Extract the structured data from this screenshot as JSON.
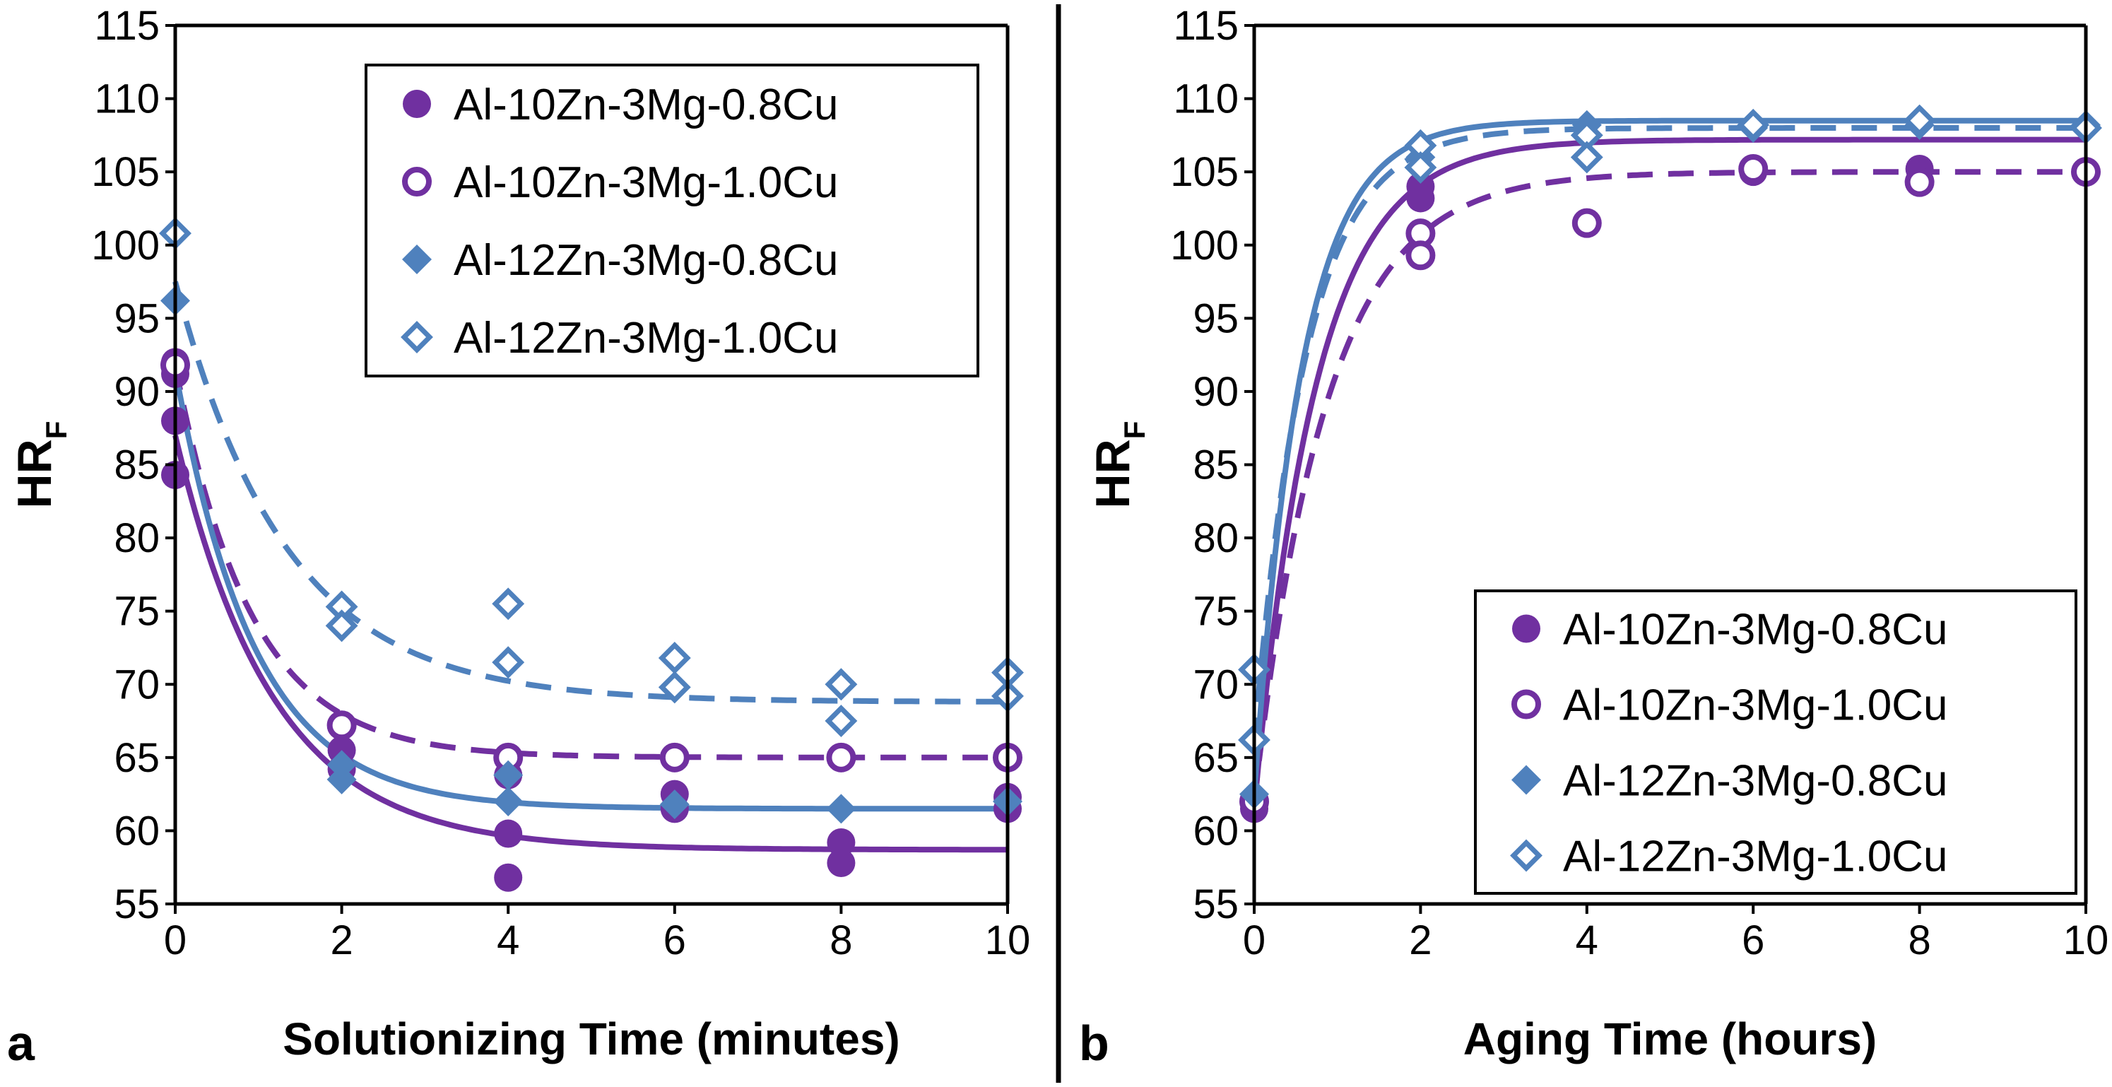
{
  "colors": {
    "purple": "#7030A0",
    "blue": "#4F81BD",
    "axis": "#000000"
  },
  "chart_data": [
    {
      "id": "a",
      "type": "scatter",
      "panel_label": "a",
      "xlabel": "Solutionizing Time (minutes)",
      "ylabel": "HR",
      "ylabel_sub": "F",
      "xlim": [
        0,
        10
      ],
      "ylim": [
        55,
        115
      ],
      "xticks": [
        0,
        2,
        4,
        6,
        8,
        10
      ],
      "yticks": [
        55,
        60,
        65,
        70,
        75,
        80,
        85,
        90,
        95,
        100,
        105,
        110,
        115
      ],
      "legend_position": "top-right",
      "series": [
        {
          "name": "Al-10Zn-3Mg-0.8Cu",
          "marker": "filled-circle",
          "color": "#7030A0",
          "line": "solid",
          "points": [
            [
              0,
              92.0
            ],
            [
              0,
              91.2
            ],
            [
              0,
              88.0
            ],
            [
              0,
              84.3
            ],
            [
              2,
              65.5
            ],
            [
              2,
              64.2
            ],
            [
              4,
              63.8
            ],
            [
              4,
              59.8
            ],
            [
              4,
              56.8
            ],
            [
              6,
              62.5
            ],
            [
              6,
              61.5
            ],
            [
              8,
              65.0
            ],
            [
              8,
              59.2
            ],
            [
              8,
              57.8
            ],
            [
              10,
              62.3
            ],
            [
              10,
              61.5
            ]
          ],
          "fit": {
            "y_inf": 58.7,
            "y0": 87.0,
            "k": 0.85
          }
        },
        {
          "name": "Al-10Zn-3Mg-1.0Cu",
          "marker": "open-circle",
          "color": "#7030A0",
          "line": "dashed",
          "points": [
            [
              0,
              91.8
            ],
            [
              2,
              67.2
            ],
            [
              4,
              65.0
            ],
            [
              6,
              65.0
            ],
            [
              8,
              65.0
            ],
            [
              10,
              65.0
            ]
          ],
          "fit": {
            "y_inf": 65.0,
            "y0": 91.8,
            "k": 1.1
          }
        },
        {
          "name": "Al-12Zn-3Mg-0.8Cu",
          "marker": "filled-diamond",
          "color": "#4F81BD",
          "line": "solid",
          "points": [
            [
              0,
              96.2
            ],
            [
              2,
              64.5
            ],
            [
              2,
              63.5
            ],
            [
              4,
              63.8
            ],
            [
              4,
              62.0
            ],
            [
              6,
              61.8
            ],
            [
              8,
              61.5
            ],
            [
              10,
              62.0
            ]
          ],
          "fit": {
            "y_inf": 61.5,
            "y0": 91.5,
            "k": 1.05
          }
        },
        {
          "name": "Al-12Zn-3Mg-1.0Cu",
          "marker": "open-diamond",
          "color": "#4F81BD",
          "line": "dashed",
          "points": [
            [
              0,
              100.8
            ],
            [
              2,
              75.3
            ],
            [
              2,
              74.0
            ],
            [
              4,
              75.5
            ],
            [
              4,
              71.5
            ],
            [
              6,
              71.8
            ],
            [
              6,
              69.8
            ],
            [
              8,
              70.0
            ],
            [
              8,
              67.5
            ],
            [
              10,
              70.8
            ],
            [
              10,
              69.2
            ]
          ],
          "fit": {
            "y_inf": 68.8,
            "y0": 97.5,
            "k": 0.75
          }
        }
      ]
    },
    {
      "id": "b",
      "type": "scatter",
      "panel_label": "b",
      "xlabel": "Aging Time (hours)",
      "ylabel": "HR",
      "ylabel_sub": "F",
      "xlim": [
        0,
        10
      ],
      "ylim": [
        55,
        115
      ],
      "xticks": [
        0,
        2,
        4,
        6,
        8,
        10
      ],
      "yticks": [
        55,
        60,
        65,
        70,
        75,
        80,
        85,
        90,
        95,
        100,
        105,
        110,
        115
      ],
      "legend_position": "bottom-right",
      "series": [
        {
          "name": "Al-10Zn-3Mg-0.8Cu",
          "marker": "filled-circle",
          "color": "#7030A0",
          "line": "solid",
          "points": [
            [
              0,
              61.5
            ],
            [
              2,
              104.0
            ],
            [
              2,
              103.2
            ],
            [
              6,
              105.0
            ],
            [
              8,
              105.2
            ],
            [
              10,
              105.0
            ]
          ],
          "fit": {
            "y_inf": 107.2,
            "y0": 61.5,
            "k": 1.35
          }
        },
        {
          "name": "Al-10Zn-3Mg-1.0Cu",
          "marker": "open-circle",
          "color": "#7030A0",
          "line": "dashed",
          "points": [
            [
              0,
              62.0
            ],
            [
              2,
              100.8
            ],
            [
              2,
              99.3
            ],
            [
              4,
              101.5
            ],
            [
              6,
              105.2
            ],
            [
              8,
              104.3
            ],
            [
              10,
              105.0
            ]
          ],
          "fit": {
            "y_inf": 105.0,
            "y0": 62.0,
            "k": 1.15
          }
        },
        {
          "name": "Al-12Zn-3Mg-0.8Cu",
          "marker": "filled-diamond",
          "color": "#4F81BD",
          "line": "solid",
          "points": [
            [
              0,
              62.5
            ],
            [
              2,
              106.0
            ],
            [
              4,
              108.2
            ],
            [
              6,
              108.0
            ],
            [
              8,
              108.2
            ],
            [
              10,
              108.2
            ]
          ],
          "fit": {
            "y_inf": 108.5,
            "y0": 62.5,
            "k": 1.75
          }
        },
        {
          "name": "Al-12Zn-3Mg-1.0Cu",
          "marker": "open-diamond",
          "color": "#4F81BD",
          "line": "dashed",
          "points": [
            [
              0,
              71.0
            ],
            [
              0,
              66.2
            ],
            [
              2,
              106.8
            ],
            [
              2,
              105.3
            ],
            [
              4,
              107.5
            ],
            [
              4,
              106.0
            ],
            [
              6,
              108.2
            ],
            [
              8,
              108.5
            ],
            [
              10,
              108.0
            ]
          ],
          "fit": {
            "y_inf": 108.0,
            "y0": 66.0,
            "k": 1.6
          }
        }
      ]
    }
  ]
}
